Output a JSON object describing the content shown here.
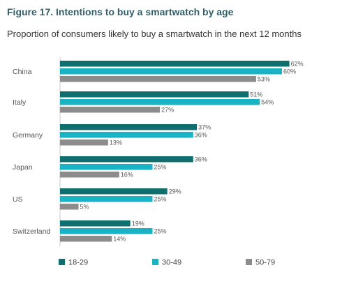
{
  "figure": {
    "title": "Figure 17. Intentions to buy a smartwatch by age",
    "subtitle": "Proportion of consumers likely to buy a smartwatch in the next 12 months"
  },
  "chart_data": {
    "type": "bar",
    "orientation": "horizontal",
    "title": "Figure 17. Intentions to buy a smartwatch by age",
    "subtitle": "Proportion of consumers likely to buy a smartwatch in the next 12 months",
    "categories": [
      "China",
      "Italy",
      "Germany",
      "Japan",
      "US",
      "Switzerland"
    ],
    "series": [
      {
        "name": "18-29",
        "color": "#0f6e6e",
        "values": [
          62,
          51,
          37,
          36,
          29,
          19
        ]
      },
      {
        "name": "30-49",
        "color": "#1ab3c6",
        "values": [
          60,
          54,
          36,
          25,
          25,
          25
        ]
      },
      {
        "name": "50-79",
        "color": "#8c8c8c",
        "values": [
          53,
          27,
          13,
          16,
          5,
          14
        ]
      }
    ],
    "value_suffix": "%",
    "xlim": [
      0,
      62
    ],
    "grid": false,
    "legend_position": "bottom"
  }
}
